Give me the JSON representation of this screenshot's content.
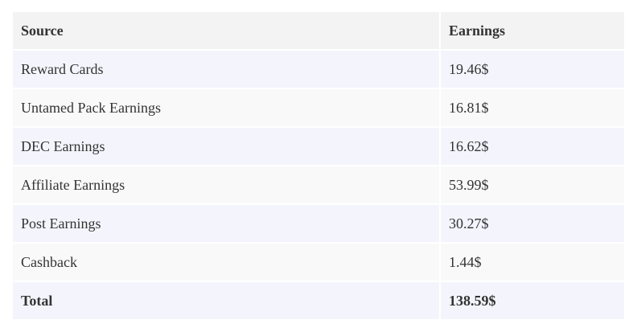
{
  "table": {
    "header": [
      "Source",
      "Earnings"
    ],
    "rows": [
      [
        "Reward Cards",
        "19.46$"
      ],
      [
        "Untamed Pack Earnings",
        "16.81$"
      ],
      [
        "DEC Earnings",
        "16.62$"
      ],
      [
        "Affiliate Earnings",
        "53.99$"
      ],
      [
        "Post Earnings",
        "30.27$"
      ],
      [
        "Cashback",
        "1.44$"
      ]
    ],
    "total": [
      "Total",
      "138.59$"
    ]
  }
}
